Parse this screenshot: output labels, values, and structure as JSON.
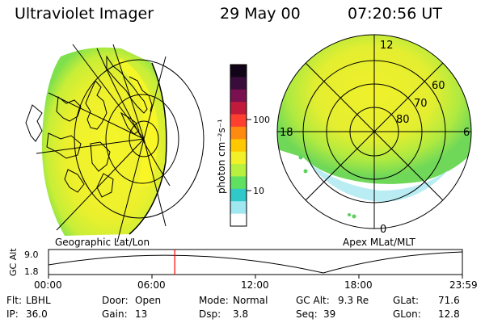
{
  "header": {
    "instrument": "Ultraviolet Imager",
    "date": "29 May 00",
    "time": "07:20:56 UT"
  },
  "colorbar": {
    "unit_label": "photon cm⁻²s⁻¹",
    "ticks": [
      "100",
      "10"
    ],
    "colors": [
      "#120418",
      "#3a0c3c",
      "#7a1050",
      "#c21a3a",
      "#ff4030",
      "#ff8a10",
      "#ffc800",
      "#f2f028",
      "#b8f040",
      "#60e060",
      "#30c8c8",
      "#a0e8f0",
      "#ffffff"
    ]
  },
  "left_panel": {
    "label": "Geographic Lat/Lon"
  },
  "right_panel": {
    "label": "Apex MLat/MLT",
    "mlt_labels": {
      "top": "12",
      "left": "18",
      "right": "6",
      "bottom": "0"
    },
    "lat_labels": [
      "60",
      "70",
      "80"
    ]
  },
  "altitude_plot": {
    "ylabel": "GC Alt",
    "yticks": [
      "9.0",
      "1.8"
    ],
    "xticks": [
      "00:00",
      "06:00",
      "12:00",
      "18:00",
      "23:59"
    ],
    "current_time_fraction": 0.305,
    "marker_color": "#ff0000"
  },
  "info": {
    "row1": [
      {
        "label": "Flt:",
        "value": "LBHL"
      },
      {
        "label": "Door:",
        "value": "Open"
      },
      {
        "label": "Mode:",
        "value": "Normal"
      },
      {
        "label": "GC Alt:",
        "value": "9.3 Re"
      },
      {
        "label": "GLat:",
        "value": "71.6"
      }
    ],
    "row2": [
      {
        "label": "IP:",
        "value": "36.0"
      },
      {
        "label": "Gain:",
        "value": "13"
      },
      {
        "label": "Dsp:",
        "value": "3.8"
      },
      {
        "label": "Seq:",
        "value": "39"
      },
      {
        "label": "GLon:",
        "value": "12.8"
      }
    ]
  }
}
